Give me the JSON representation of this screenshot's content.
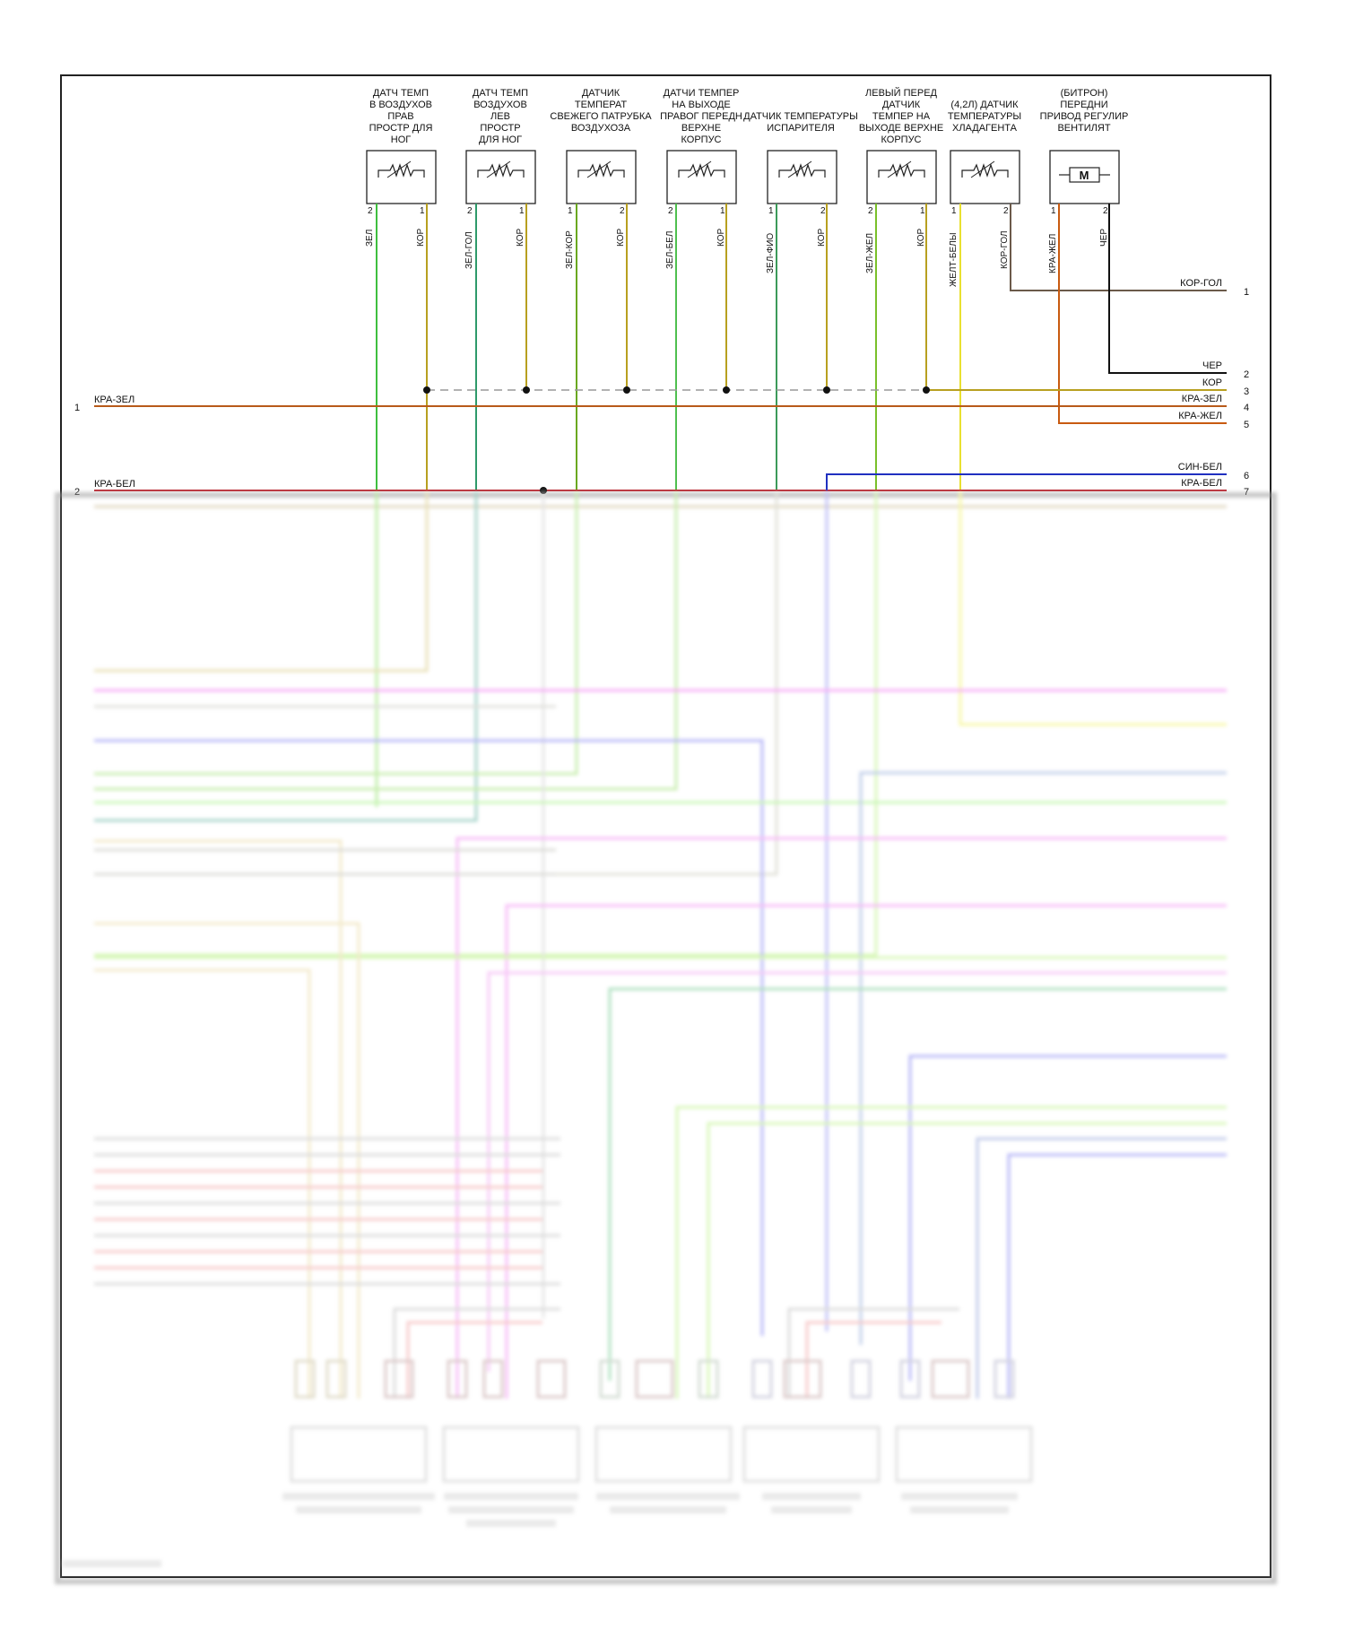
{
  "colors": {
    "frame": "#222222",
    "kor": "#b8860b",
    "zel": "#3fbf3f",
    "zel_gol": "#2e9a6a",
    "zel_kor": "#6aa820",
    "zel_bel": "#4fc04f",
    "zel_fio": "#3c9a5a",
    "zel_zhel": "#7ac02a",
    "zhel_bel": "#e8e030",
    "kor_gol": "#6b5a4a",
    "kra_zhel": "#c85a10",
    "cher": "#111111",
    "kra_zel": "#b85a1a",
    "kra_bel": "#c0303a",
    "sin_bel": "#2030c0",
    "dash": "#888888"
  },
  "sensors": [
    {
      "id": "s1",
      "title": [
        "ДАТЧ ТЕМП",
        "В ВОЗДУХОВ",
        "ПРАВ",
        "ПРОСТР ДЛЯ",
        "НОГ"
      ],
      "symbol": "resistor",
      "pins": [
        {
          "num": "2",
          "wire": "ЗЕЛ"
        },
        {
          "num": "1",
          "wire": "КОР"
        }
      ]
    },
    {
      "id": "s2",
      "title": [
        "ДАТЧ ТЕМП",
        "ВОЗДУХОВ",
        "ЛЕВ",
        "ПРОСТР",
        "ДЛЯ НОГ"
      ],
      "symbol": "resistor",
      "pins": [
        {
          "num": "2",
          "wire": "ЗЕЛ-ГОЛ"
        },
        {
          "num": "1",
          "wire": "КОР"
        }
      ]
    },
    {
      "id": "s3",
      "title": [
        "ДАТЧИК",
        "ТЕМПЕРАТ",
        "СВЕЖЕГО ПАТРУБКА",
        "ВОЗДУХОЗА"
      ],
      "symbol": "resistor",
      "pins": [
        {
          "num": "1",
          "wire": "ЗЕЛ-КОР"
        },
        {
          "num": "2",
          "wire": "КОР"
        }
      ]
    },
    {
      "id": "s4",
      "title": [
        "ДАТЧИ ТЕМПЕР",
        "НА ВЫХОДЕ",
        "ПРАВОГ ПЕРЕДН",
        "ВЕРХНЕ",
        "КОРПУС"
      ],
      "symbol": "resistor",
      "pins": [
        {
          "num": "2",
          "wire": "ЗЕЛ-БЕЛ"
        },
        {
          "num": "1",
          "wire": "КОР"
        }
      ]
    },
    {
      "id": "s5",
      "title": [
        "ДАТЧИК ТЕМПЕРАТУРЫ",
        "ИСПАРИТЕЛЯ"
      ],
      "symbol": "resistor",
      "pins": [
        {
          "num": "1",
          "wire": "ЗЕЛ-ФИО"
        },
        {
          "num": "2",
          "wire": "КОР"
        }
      ]
    },
    {
      "id": "s6",
      "title": [
        "ЛЕВЫЙ ПЕРЕД",
        "ДАТЧИК",
        "ТЕМПЕР НА",
        "ВЫХОДЕ ВЕРХНЕ",
        "КОРПУС"
      ],
      "symbol": "resistor",
      "pins": [
        {
          "num": "2",
          "wire": "ЗЕЛ-ЖЕЛ"
        },
        {
          "num": "1",
          "wire": "КОР"
        }
      ]
    },
    {
      "id": "s7",
      "title": [
        "(4,2Л) ДАТЧИК",
        "ТЕМПЕРАТУРЫ",
        "ХЛАДАГЕНТА"
      ],
      "symbol": "resistor",
      "pins": [
        {
          "num": "1",
          "wire": "ЖЕЛТ-БЕЛЫ"
        },
        {
          "num": "2",
          "wire": "КОР-ГОЛ"
        }
      ]
    },
    {
      "id": "s8",
      "title": [
        "(БИТРОН)",
        "ПЕРЕДНИ",
        "ПРИВОД РЕГУЛИР",
        "ВЕНТИЛЯТ"
      ],
      "symbol": "motor",
      "symbol_text": "M",
      "pins": [
        {
          "num": "1",
          "wire": "КРА-ЖЕЛ"
        },
        {
          "num": "2",
          "wire": "ЧЕР"
        }
      ]
    }
  ],
  "right_connector": [
    {
      "num": "1",
      "wire": "КОР-ГОЛ"
    },
    {
      "num": "2",
      "wire": "ЧЕР"
    },
    {
      "num": "3",
      "wire": "КОР"
    },
    {
      "num": "4",
      "wire": "КРА-ЗЕЛ"
    },
    {
      "num": "5",
      "wire": "КРА-ЖЕЛ"
    },
    {
      "num": "6",
      "wire": "СИН-БЕЛ"
    },
    {
      "num": "7",
      "wire": "КРА-БЕЛ"
    }
  ],
  "left_connector": [
    {
      "num": "1",
      "wire": "КРА-ЗЕЛ"
    },
    {
      "num": "2",
      "wire": "КРА-БЕЛ"
    }
  ]
}
